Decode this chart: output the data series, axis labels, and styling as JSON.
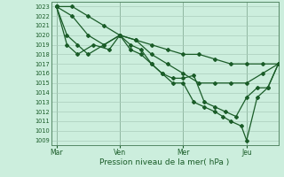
{
  "xlabel": "Pression niveau de la mer( hPa )",
  "bg_color": "#cceedd",
  "grid_color": "#aaccbb",
  "line_color": "#1a5c28",
  "vline_color": "#558866",
  "ylim_min": 1008.5,
  "ylim_max": 1023.5,
  "yticks": [
    1009,
    1010,
    1011,
    1012,
    1013,
    1014,
    1015,
    1016,
    1017,
    1018,
    1019,
    1020,
    1021,
    1022,
    1023
  ],
  "xtick_labels": [
    "Mar",
    "Ven",
    "Mer",
    "Jeu"
  ],
  "xtick_positions": [
    0,
    24,
    48,
    72
  ],
  "xlim_min": -2,
  "xlim_max": 84,
  "series1_x": [
    0,
    6,
    12,
    18,
    24,
    30,
    36,
    42,
    48,
    54,
    60,
    66,
    72,
    78,
    84
  ],
  "series1_y": [
    1023,
    1023,
    1022,
    1021,
    1020,
    1019.5,
    1019,
    1018.5,
    1018,
    1018,
    1017.5,
    1017,
    1017,
    1017,
    1017
  ],
  "series2_x": [
    0,
    6,
    12,
    18,
    24,
    30,
    36,
    42,
    48,
    54,
    60,
    66,
    72,
    78,
    84
  ],
  "series2_y": [
    1023,
    1022,
    1020,
    1019,
    1020,
    1019.5,
    1018,
    1017,
    1016,
    1015,
    1015,
    1015,
    1015,
    1016,
    1017
  ],
  "series3_x": [
    0,
    4,
    8,
    12,
    18,
    24,
    28,
    32,
    36,
    40,
    44,
    48,
    52,
    56,
    60,
    64,
    68,
    72,
    76,
    80,
    84
  ],
  "series3_y": [
    1023,
    1020,
    1019,
    1018,
    1019,
    1020,
    1018.5,
    1018,
    1017,
    1016,
    1015.5,
    1015.5,
    1015.8,
    1013,
    1012.5,
    1012,
    1011.5,
    1013.5,
    1014.5,
    1014.5,
    1017
  ],
  "series4_x": [
    0,
    4,
    8,
    14,
    20,
    24,
    28,
    32,
    36,
    40,
    44,
    48,
    52,
    56,
    60,
    63,
    66,
    70,
    72,
    76,
    80,
    84
  ],
  "series4_y": [
    1023,
    1019,
    1018,
    1019,
    1018.5,
    1020,
    1019,
    1018.5,
    1017,
    1016,
    1015,
    1015,
    1013,
    1012.5,
    1012,
    1011.5,
    1011,
    1010.5,
    1009,
    1013.5,
    1014.5,
    1017
  ]
}
